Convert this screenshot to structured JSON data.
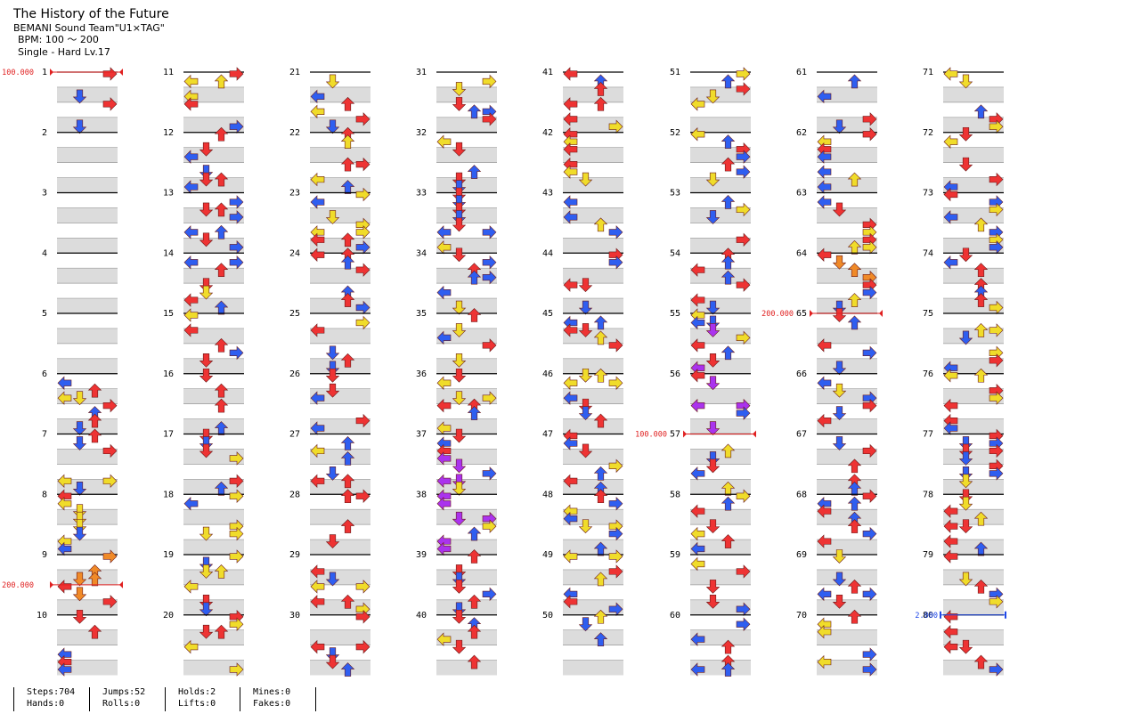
{
  "song": {
    "title": "The History of the Future",
    "artist": "BEMANI Sound Team\"U1×TAG\"",
    "bpm": "BPM: 100 ～ 200",
    "difficulty": "Single - Hard  Lv.17"
  },
  "measures": [
    "1",
    "2",
    "3",
    "4",
    "5",
    "6",
    "7",
    "8",
    "9",
    "10",
    "11",
    "12",
    "13",
    "14",
    "15",
    "16",
    "17",
    "18",
    "19",
    "20",
    "21",
    "22",
    "23",
    "24",
    "25",
    "26",
    "27",
    "28",
    "29",
    "30",
    "31",
    "32",
    "33",
    "34",
    "35",
    "36",
    "37",
    "38",
    "39",
    "40",
    "41",
    "42",
    "43",
    "44",
    "45",
    "46",
    "47",
    "48",
    "49",
    "50",
    "51",
    "52",
    "53",
    "54",
    "55",
    "56",
    "57",
    "58",
    "59",
    "60",
    "61",
    "62",
    "63",
    "64",
    "65",
    "66",
    "67",
    "68",
    "69",
    "70",
    "71",
    "72",
    "73",
    "74",
    "75",
    "76",
    "77",
    "78",
    "79",
    "80"
  ],
  "measures_per_column": 10,
  "bpm_changes": [
    {
      "measure": 1,
      "label": "100.000"
    },
    {
      "measure": 9.5,
      "label": "200.000"
    },
    {
      "measure": 57,
      "label": "100.000"
    },
    {
      "measure": 65,
      "label": "200.000"
    }
  ],
  "speed_changes": [
    {
      "measure": 80,
      "label": "2.000"
    }
  ],
  "arrow_colors": {
    "quarter": "#ee3333",
    "eighth": "#2f5ef0",
    "sixteenth": "#f0dc2a",
    "triplet": "#aa33ee",
    "hold": "#f08a28"
  },
  "stats": {
    "steps": "Steps:704",
    "hands": "Hands:0",
    "jumps": "Jumps:52",
    "rolls": "Rolls:0",
    "holds": "Holds:2",
    "lifts": "Lifts:0",
    "mines": "Mines:0",
    "fakes": "Fakes:0"
  }
}
